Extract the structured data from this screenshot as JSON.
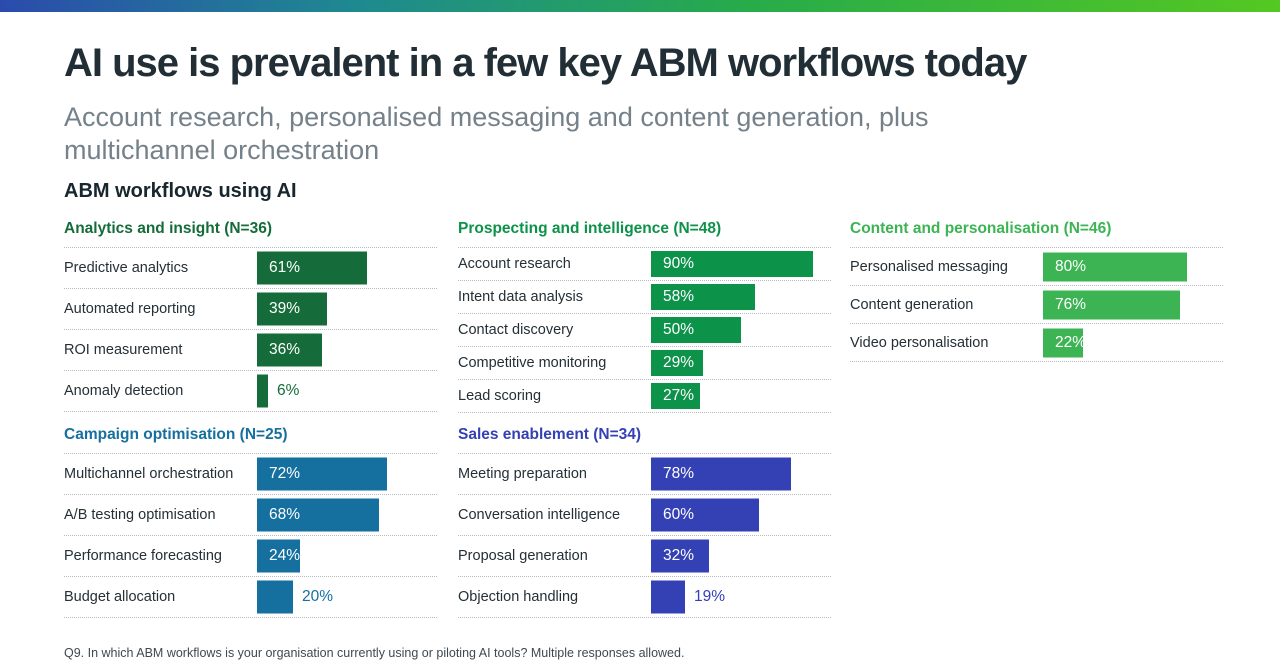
{
  "accent_bar": {
    "gradient_left": "#2b4bac",
    "gradient_mid": "#1e8a90",
    "gradient_right": "#55c822"
  },
  "header": {
    "title": "AI use is prevalent in a few key ABM workflows today",
    "subtitle": "Account research, personalised messaging and content generation, plus multichannel orchestration"
  },
  "section_heading": "ABM workflows using AI",
  "footnote": "Q9. In which ABM workflows is your organisation currently using or piloting AI tools? Multiple responses allowed.",
  "colors": {
    "title_text": "#222e35",
    "subtitle_text": "#75818a",
    "row_label_text": "#242f36",
    "bar_value_inside_text": "#ffffff",
    "dotted_separator": "#b7bbbf"
  },
  "chart_data": {
    "type": "bar",
    "orientation": "horizontal",
    "unit": "%",
    "value_axis_max": 100,
    "title": "ABM workflows using AI",
    "legend": "none",
    "grid": "dotted row separators only",
    "groups": [
      {
        "id": "analytics-and-insight",
        "title": "Analytics and insight (N=36)",
        "color": "#156c3a",
        "items": [
          {
            "label": "Predictive analytics",
            "value": 61,
            "value_label": "61%"
          },
          {
            "label": "Automated reporting",
            "value": 39,
            "value_label": "39%"
          },
          {
            "label": "ROI measurement",
            "value": 36,
            "value_label": "36%"
          },
          {
            "label": "Anomaly detection",
            "value": 6,
            "value_label": "6%"
          }
        ]
      },
      {
        "id": "prospecting-and-intelligence",
        "title": "Prospecting and intelligence (N=48)",
        "color": "#0d9249",
        "items": [
          {
            "label": "Account research",
            "value": 90,
            "value_label": "90%"
          },
          {
            "label": "Intent data analysis",
            "value": 58,
            "value_label": "58%"
          },
          {
            "label": "Contact discovery",
            "value": 50,
            "value_label": "50%"
          },
          {
            "label": "Competitive monitoring",
            "value": 29,
            "value_label": "29%"
          },
          {
            "label": "Lead scoring",
            "value": 27,
            "value_label": "27%"
          }
        ]
      },
      {
        "id": "content-and-personalisation",
        "title": "Content and personalisation (N=46)",
        "color": "#3cb454",
        "items": [
          {
            "label": "Personalised messaging",
            "value": 80,
            "value_label": "80%"
          },
          {
            "label": "Content generation",
            "value": 76,
            "value_label": "76%"
          },
          {
            "label": "Video personalisation",
            "value": 22,
            "value_label": "22%"
          }
        ]
      },
      {
        "id": "campaign-optimisation",
        "title": "Campaign optimisation (N=25)",
        "color": "#156f9f",
        "items": [
          {
            "label": "Multichannel orchestration",
            "value": 72,
            "value_label": "72%"
          },
          {
            "label": "A/B testing optimisation",
            "value": 68,
            "value_label": "68%"
          },
          {
            "label": "Performance forecasting",
            "value": 24,
            "value_label": "24%"
          },
          {
            "label": "Budget allocation",
            "value": 20,
            "value_label": "20%"
          }
        ]
      },
      {
        "id": "sales-enablement",
        "title": "Sales enablement (N=34)",
        "color": "#3441b4",
        "items": [
          {
            "label": "Meeting preparation",
            "value": 78,
            "value_label": "78%"
          },
          {
            "label": "Conversation intelligence",
            "value": 60,
            "value_label": "60%"
          },
          {
            "label": "Proposal generation",
            "value": 32,
            "value_label": "32%"
          },
          {
            "label": "Objection handling",
            "value": 19,
            "value_label": "19%"
          }
        ]
      }
    ]
  }
}
